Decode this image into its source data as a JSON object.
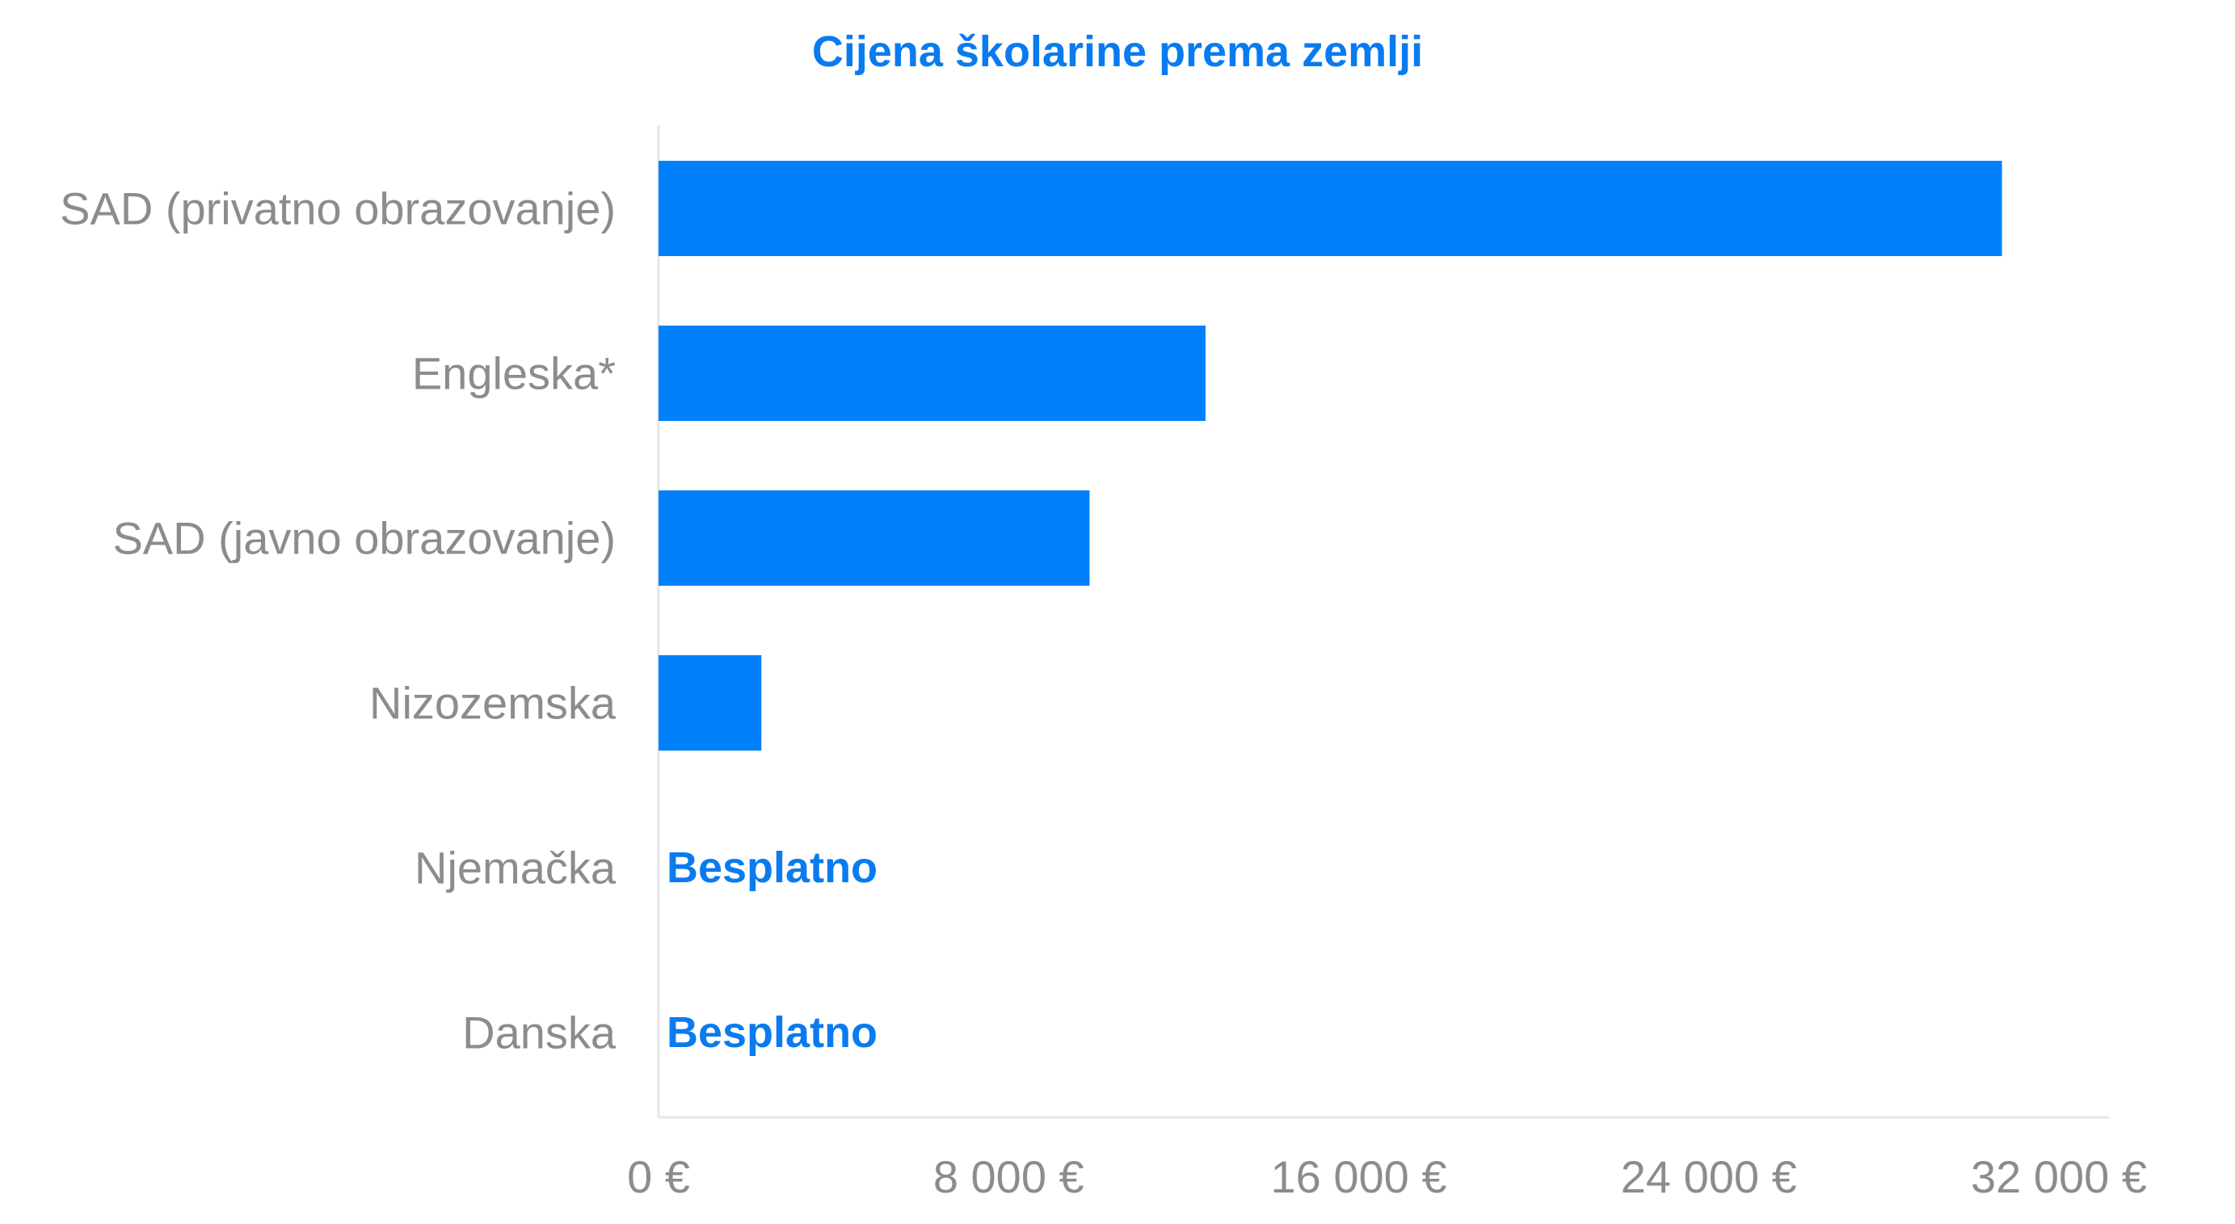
{
  "chart_data": {
    "type": "bar",
    "orientation": "horizontal",
    "title": "Cijena školarine prema zemlji",
    "categories": [
      "SAD (privatno obrazovanje)",
      "Engleska*",
      "SAD (javno obrazovanje)",
      "Nizozemska",
      "Njemačka",
      "Danska"
    ],
    "values": [
      30700,
      12500,
      9850,
      2350,
      0,
      0
    ],
    "data_labels": [
      "",
      "",
      "",
      "",
      "Besplatno",
      "Besplatno"
    ],
    "x_ticks": [
      0,
      8000,
      16000,
      24000,
      32000
    ],
    "x_tick_labels": [
      "0 €",
      "8 000 €",
      "16 000 €",
      "24 000 €",
      "32 000 €"
    ],
    "xlim": [
      0,
      32000
    ],
    "xlabel": "",
    "ylabel": "",
    "grid": false,
    "legend": "none",
    "colors": {
      "bar": "#0080FA",
      "title": "#0A7BEF",
      "data_label": "#0A7BEF",
      "category_label": "#8C8C8C",
      "tick_label": "#8C8C8C",
      "axis": "#E6E6EB"
    }
  }
}
